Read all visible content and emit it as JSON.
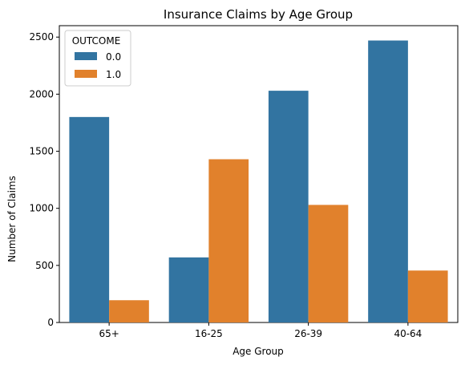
{
  "chart_data": {
    "type": "bar",
    "title": "Insurance Claims by Age Group",
    "xlabel": "Age Group",
    "ylabel": "Number of Claims",
    "categories": [
      "65+",
      "16-25",
      "26-39",
      "40-64"
    ],
    "series": [
      {
        "name": "0.0",
        "color": "#3274a1",
        "values": [
          1800,
          570,
          2030,
          2470
        ]
      },
      {
        "name": "1.0",
        "color": "#e1812c",
        "values": [
          195,
          1430,
          1030,
          455
        ]
      }
    ],
    "ylim": [
      0,
      2600
    ],
    "yticks": [
      0,
      500,
      1000,
      1500,
      2000,
      2500
    ],
    "legend": {
      "title": "OUTCOME",
      "placement": "top-left"
    },
    "grid": false
  }
}
